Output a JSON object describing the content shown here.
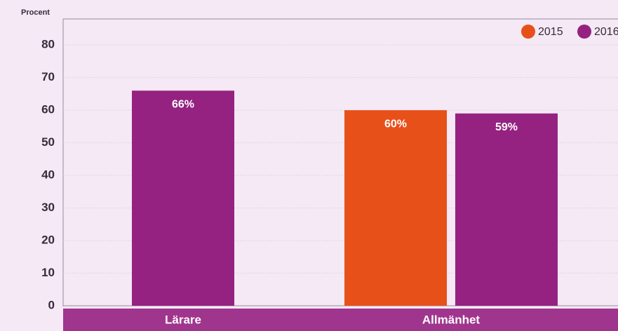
{
  "chart_data": {
    "type": "bar",
    "y_label": "Procent",
    "categories": [
      "Lärare",
      "Allmänhet"
    ],
    "series": [
      {
        "name": "2015",
        "color": "#e8501a",
        "values": [
          null,
          60
        ],
        "value_labels": [
          null,
          "60%"
        ]
      },
      {
        "name": "2016",
        "color": "#952280",
        "values": [
          66,
          59
        ],
        "value_labels": [
          "66%",
          "59%"
        ]
      }
    ],
    "ylim": [
      0,
      88
    ],
    "yticks": [
      0,
      10,
      20,
      30,
      40,
      50,
      60,
      70,
      80
    ],
    "grid": true,
    "legend": "top-right"
  }
}
